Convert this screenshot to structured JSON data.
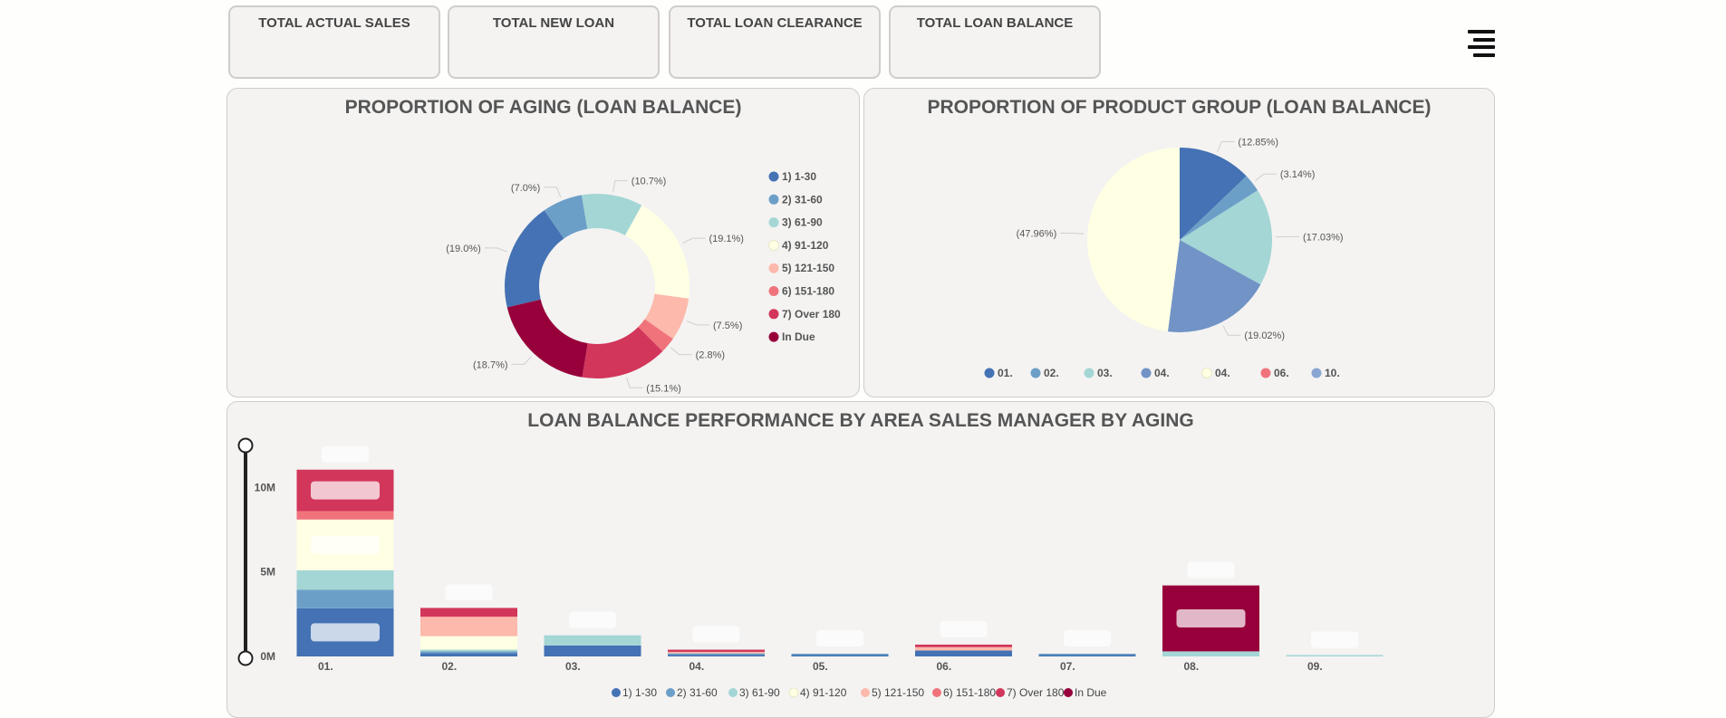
{
  "kpis": [
    {
      "label": "TOTAL ACTUAL SALES"
    },
    {
      "label": "TOTAL NEW LOAN"
    },
    {
      "label": "TOTAL LOAN CLEARANCE"
    },
    {
      "label": "TOTAL LOAN BALANCE"
    }
  ],
  "menu_icon": "hamburger-menu-icon",
  "chart_data": [
    {
      "type": "pie",
      "title": "PROPORTION OF AGING (LOAN BALANCE)",
      "donut": true,
      "legend_placement": "right",
      "slices": [
        {
          "label": "1) 1-30",
          "value": 19.0,
          "display": "(19.0%)",
          "color": "#4472b4"
        },
        {
          "label": "2) 31-60",
          "value": 7.0,
          "display": "(7.0%)",
          "color": "#6c9fc8"
        },
        {
          "label": "3) 61-90",
          "value": 10.7,
          "display": "(10.7%)",
          "color": "#a3d6d5"
        },
        {
          "label": "4) 91-120",
          "value": 19.1,
          "display": "(19.1%)",
          "color": "#ffffe3"
        },
        {
          "label": "5) 121-150",
          "value": 7.5,
          "display": "(7.5%)",
          "color": "#fcb9ac"
        },
        {
          "label": "6) 151-180",
          "value": 2.8,
          "display": "(2.8%)",
          "color": "#f0737c"
        },
        {
          "label": "7) Over 180",
          "value": 15.1,
          "display": "(15.1%)",
          "color": "#d2365a"
        },
        {
          "label": "In Due",
          "value": 18.7,
          "display": "(18.7%)",
          "color": "#97003b"
        }
      ]
    },
    {
      "type": "pie",
      "title": "PROPORTION OF PRODUCT GROUP (LOAN BALANCE)",
      "donut": false,
      "legend_placement": "bottom",
      "slices": [
        {
          "label": "01.",
          "value": 12.85,
          "display": "(12.85%)",
          "color": "#4472b4"
        },
        {
          "label": "02.",
          "value": 3.14,
          "display": "(3.14%)",
          "color": "#6c9fc8"
        },
        {
          "label": "03.",
          "value": 17.03,
          "display": "(17.03%)",
          "color": "#a3d6d5"
        },
        {
          "label": "04.",
          "value": 19.02,
          "display": "(19.02%)",
          "color": "#7193c6"
        },
        {
          "label": "04.",
          "value": 47.96,
          "display": "(47.96%)",
          "color": "#ffffe3"
        },
        {
          "label": "06.",
          "value": 0,
          "display": "",
          "color": "#f0737c"
        },
        {
          "label": "10.",
          "value": 0,
          "display": "",
          "color": "#8ba5d2"
        }
      ]
    },
    {
      "type": "bar",
      "stacked": true,
      "title": "LOAN BALANCE PERFORMANCE BY AREA SALES MANAGER BY AGING",
      "categories": [
        "01.",
        "02.",
        "03.",
        "04.",
        "05.",
        "06.",
        "07.",
        "08.",
        "09."
      ],
      "ylim": [
        0,
        12000000
      ],
      "yticks": [
        {
          "value": 0,
          "label": "0M"
        },
        {
          "value": 5000000,
          "label": "5M"
        },
        {
          "value": 10000000,
          "label": "10M"
        }
      ],
      "legend_placement": "bottom",
      "series": [
        {
          "name": "1) 1-30",
          "color": "#4472b4",
          "values": [
            2850000,
            200000,
            650000,
            100000,
            40000,
            350000,
            40000,
            0,
            0
          ]
        },
        {
          "name": "2) 31-60",
          "color": "#6c9fc8",
          "values": [
            1100000,
            100000,
            0,
            60000,
            30000,
            0,
            30000,
            0,
            0
          ]
        },
        {
          "name": "3) 61-90",
          "color": "#a3d6d5",
          "values": [
            1150000,
            100000,
            600000,
            0,
            0,
            0,
            0,
            300000,
            10000
          ]
        },
        {
          "name": "4) 91-120",
          "color": "#ffffe3",
          "values": [
            3000000,
            800000,
            0,
            0,
            0,
            0,
            0,
            0,
            0
          ]
        },
        {
          "name": "5) 121-150",
          "color": "#fcb9ac",
          "values": [
            0,
            1150000,
            0,
            90000,
            0,
            200000,
            0,
            0,
            0
          ]
        },
        {
          "name": "6) 151-180",
          "color": "#f0737c",
          "values": [
            500000,
            0,
            0,
            0,
            0,
            0,
            0,
            0,
            0
          ]
        },
        {
          "name": "7) Over 180",
          "color": "#d2365a",
          "values": [
            2450000,
            520000,
            0,
            130000,
            0,
            150000,
            0,
            0,
            0
          ]
        },
        {
          "name": "In Due",
          "color": "#97003b",
          "values": [
            0,
            0,
            0,
            0,
            0,
            0,
            0,
            3900000,
            0
          ]
        }
      ]
    }
  ]
}
